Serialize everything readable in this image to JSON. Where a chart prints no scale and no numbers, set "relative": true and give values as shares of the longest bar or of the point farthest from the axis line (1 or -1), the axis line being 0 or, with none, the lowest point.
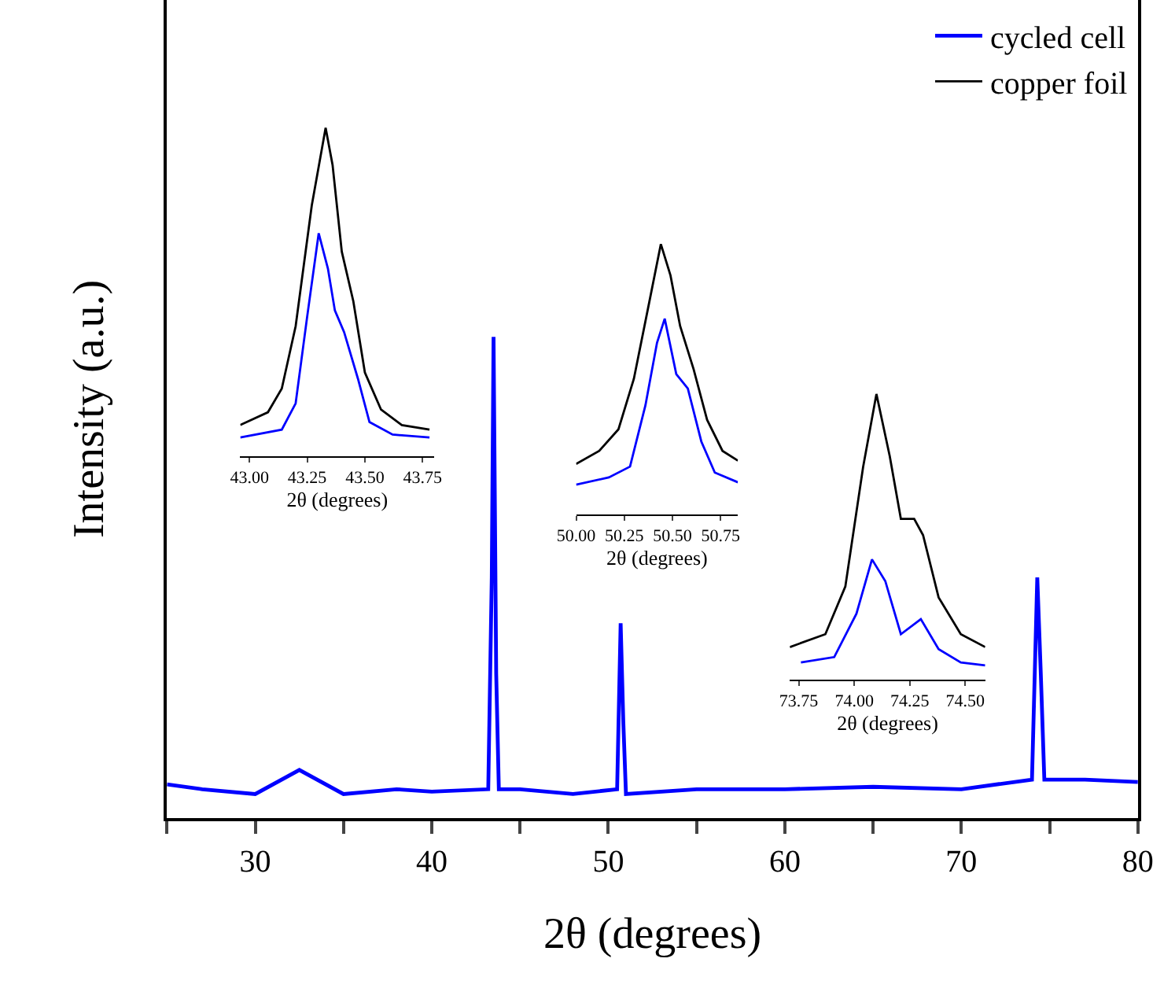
{
  "chart_data": [
    {
      "type": "line",
      "relative": true,
      "xlabel": "2θ (degrees)",
      "ylabel": "Intensity (a.u.)",
      "xlim": [
        25,
        80
      ],
      "xticks": [
        {
          "value": 25,
          "label": null
        },
        30,
        {
          "value": 35,
          "label": null
        },
        40,
        {
          "value": 45,
          "label": null
        },
        50,
        {
          "value": 55,
          "label": null
        },
        60,
        {
          "value": 65,
          "label": null
        },
        70,
        {
          "value": 75,
          "label": null
        },
        80
      ],
      "tick_labels": "x",
      "legend": "top right",
      "series": [
        {
          "name": "cycled cell",
          "color": "#0000ff",
          "x": [
            25,
            27,
            30,
            32.5,
            35,
            38,
            40,
            43.2,
            43.4,
            43.5,
            43.65,
            43.8,
            45,
            48,
            50.5,
            50.7,
            50.85,
            51,
            55,
            60,
            65,
            70,
            74,
            74.3,
            74.5,
            74.7,
            77,
            80
          ],
          "values": [
            0.07,
            0.06,
            0.05,
            0.1,
            0.05,
            0.06,
            0.055,
            0.06,
            0.5,
            1.0,
            0.3,
            0.06,
            0.06,
            0.05,
            0.06,
            0.405,
            0.2,
            0.05,
            0.06,
            0.06,
            0.065,
            0.06,
            0.08,
            0.5,
            0.3,
            0.08,
            0.08,
            0.075
          ]
        }
      ]
    },
    {
      "type": "line",
      "relative": true,
      "xlabel": "2θ (degrees)",
      "xlim": [
        42.96,
        43.8
      ],
      "xticks": [
        {
          "value": 43,
          "label": "43.00"
        },
        43.25,
        {
          "value": 43.5,
          "label": "43.50"
        },
        43.75
      ],
      "tick_labels": "x",
      "series": [
        {
          "name": "copper foil",
          "color": "#000000",
          "x": [
            42.96,
            43.08,
            43.14,
            43.2,
            43.27,
            43.33,
            43.36,
            43.4,
            43.45,
            43.5,
            43.57,
            43.66,
            43.78
          ],
          "values": [
            0.095,
            0.134,
            0.206,
            0.396,
            0.764,
            1.0,
            0.887,
            0.623,
            0.472,
            0.255,
            0.142,
            0.095,
            0.081
          ]
        },
        {
          "name": "cycled cell",
          "color": "#0000ff",
          "x": [
            42.96,
            43.14,
            43.2,
            43.25,
            43.3,
            43.34,
            43.37,
            43.41,
            43.47,
            43.52,
            43.62,
            43.78
          ],
          "values": [
            0.057,
            0.081,
            0.161,
            0.425,
            0.679,
            0.571,
            0.444,
            0.378,
            0.236,
            0.104,
            0.066,
            0.057
          ]
        }
      ]
    },
    {
      "type": "line",
      "relative": true,
      "xlabel": "2θ (degrees)",
      "xlim": [
        50.0,
        50.84
      ],
      "xticks": [
        {
          "value": 50,
          "label": "50.00"
        },
        50.25,
        {
          "value": 50.5,
          "label": "50.50"
        },
        50.75
      ],
      "tick_labels": "x",
      "series": [
        {
          "name": "copper foil",
          "color": "#000000",
          "x": [
            50.0,
            50.12,
            50.22,
            50.3,
            50.38,
            50.44,
            50.49,
            50.54,
            50.61,
            50.68,
            50.76,
            50.84
          ],
          "values": [
            0.187,
            0.235,
            0.315,
            0.502,
            0.786,
            1.0,
            0.884,
            0.697,
            0.537,
            0.35,
            0.235,
            0.199
          ]
        },
        {
          "name": "cycled cell",
          "color": "#0000ff",
          "x": [
            50.0,
            50.17,
            50.28,
            50.36,
            50.42,
            50.46,
            50.52,
            50.58,
            50.65,
            50.72,
            50.84
          ],
          "values": [
            0.11,
            0.137,
            0.177,
            0.404,
            0.635,
            0.724,
            0.519,
            0.466,
            0.27,
            0.155,
            0.119
          ]
        }
      ]
    },
    {
      "type": "line",
      "relative": true,
      "xlabel": "2θ (degrees)",
      "xlim": [
        73.71,
        74.59
      ],
      "xticks": [
        73.75,
        {
          "value": 74,
          "label": "74.00"
        },
        74.25,
        {
          "value": 74.5,
          "label": "74.50"
        }
      ],
      "tick_labels": "x",
      "series": [
        {
          "name": "copper foil",
          "color": "#000000",
          "x": [
            73.71,
            73.87,
            73.96,
            74.04,
            74.1,
            74.16,
            74.21,
            74.27,
            74.31,
            74.38,
            74.48,
            74.59
          ],
          "values": [
            0.114,
            0.159,
            0.326,
            0.744,
            1.0,
            0.782,
            0.563,
            0.563,
            0.506,
            0.288,
            0.159,
            0.114
          ]
        },
        {
          "name": "cycled cell",
          "color": "#0000ff",
          "x": [
            73.76,
            73.91,
            74.01,
            74.08,
            74.14,
            74.21,
            74.3,
            74.38,
            74.48,
            74.59
          ],
          "values": [
            0.06,
            0.079,
            0.231,
            0.421,
            0.345,
            0.159,
            0.212,
            0.107,
            0.06,
            0.05
          ]
        }
      ]
    }
  ]
}
